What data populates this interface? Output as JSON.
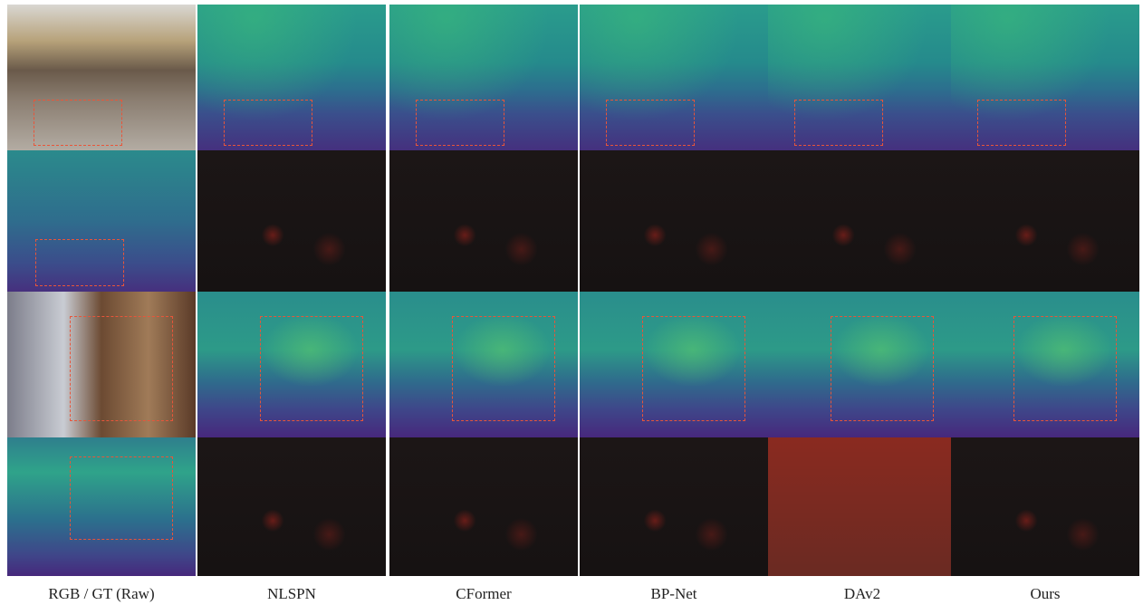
{
  "columns": [
    "RGB / GT (Raw)",
    "NLSPN",
    "CFormer",
    "BP-Net",
    "DAv2",
    "Ours"
  ]
}
